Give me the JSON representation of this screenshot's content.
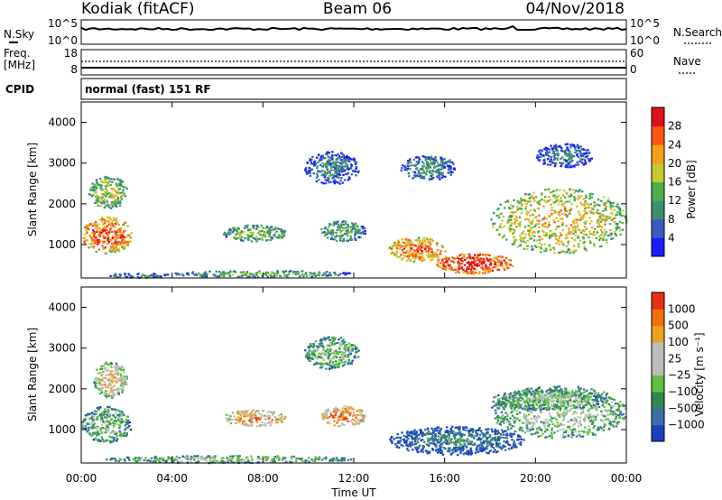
{
  "header": {
    "station": "Kodiak (fitACF)",
    "beam": "Beam 06",
    "date": "04/Nov/2018"
  },
  "sky_panel": {
    "left_label": "N.Sky",
    "left_top": "10^5",
    "left_bottom": "10^0",
    "right_top": "10^5",
    "right_bottom": "10^0",
    "right_label": "N.Search"
  },
  "freq_panel": {
    "label_line1": "Freq.",
    "label_line2": "[MHz]",
    "left_top": "18",
    "left_bottom": "8",
    "right_top": "60",
    "right_bottom": "0",
    "right_label": "Nave"
  },
  "cpid": {
    "label": "CPID",
    "value": "normal (fast) 151 RF"
  },
  "x_axis": {
    "title": "Time UT",
    "ticks": [
      "00:00",
      "04:00",
      "08:00",
      "12:00",
      "16:00",
      "20:00",
      "00:00"
    ]
  },
  "chart_data": [
    {
      "type": "heatmap",
      "title": "Power",
      "ylabel": "Slant Range [km]",
      "xlabel": "Time UT",
      "ylim": [
        180,
        4500
      ],
      "yticks": [
        1000,
        2000,
        3000,
        4000
      ],
      "colorbar": {
        "label": "Power [dB]",
        "ticks": [
          "4",
          "8",
          "12",
          "16",
          "20",
          "24",
          "28"
        ],
        "colors": [
          "#1a1aff",
          "#3a5ac0",
          "#3c8f6e",
          "#49b049",
          "#c9c92e",
          "#f2a019",
          "#ff5512",
          "#e0101a"
        ]
      },
      "blobs": [
        {
          "t": [
            0.0,
            2.2
          ],
          "r": [
            800,
            1700
          ],
          "level": 0.85
        },
        {
          "t": [
            0.3,
            2.0
          ],
          "r": [
            1900,
            2700
          ],
          "level": 0.55
        },
        {
          "t": [
            1.0,
            4.0
          ],
          "r": [
            200,
            320
          ],
          "level": 0.35
        },
        {
          "t": [
            4.0,
            12.0
          ],
          "r": [
            220,
            380
          ],
          "level": 0.45
        },
        {
          "t": [
            6.2,
            9.0
          ],
          "r": [
            1100,
            1500
          ],
          "level": 0.5
        },
        {
          "t": [
            9.8,
            12.2
          ],
          "r": [
            2500,
            3300
          ],
          "level": 0.3
        },
        {
          "t": [
            10.5,
            12.5
          ],
          "r": [
            1100,
            1600
          ],
          "level": 0.45
        },
        {
          "t": [
            14.0,
            16.5
          ],
          "r": [
            2600,
            3200
          ],
          "level": 0.35
        },
        {
          "t": [
            13.5,
            16.0
          ],
          "r": [
            600,
            1200
          ],
          "level": 0.8
        },
        {
          "t": [
            15.5,
            19.0
          ],
          "r": [
            300,
            800
          ],
          "level": 0.95
        },
        {
          "t": [
            18.0,
            24.0
          ],
          "r": [
            800,
            2400
          ],
          "level": 0.65
        },
        {
          "t": [
            20.0,
            22.5
          ],
          "r": [
            2900,
            3500
          ],
          "level": 0.3
        }
      ]
    },
    {
      "type": "heatmap",
      "title": "Velocity",
      "ylabel": "Slant Range [km]",
      "xlabel": "Time UT",
      "ylim": [
        180,
        4500
      ],
      "yticks": [
        1000,
        2000,
        3000,
        4000
      ],
      "colorbar": {
        "label": "Velocity [m s⁻¹]",
        "ticks": [
          "1000",
          "500",
          "100",
          "25",
          "−25",
          "−100",
          "−500",
          "−1000"
        ],
        "colors": [
          "#1c3fbf",
          "#3a6fb0",
          "#2e8a50",
          "#5ec23c",
          "#bdbdbd",
          "#bdbdbd",
          "#f0a020",
          "#f07010",
          "#e83012"
        ]
      },
      "blobs": [
        {
          "t": [
            0.0,
            2.2
          ],
          "r": [
            700,
            1600
          ],
          "level": 0.45
        },
        {
          "t": [
            0.5,
            2.0
          ],
          "r": [
            1800,
            2700
          ],
          "level": 0.65
        },
        {
          "t": [
            1.0,
            12.0
          ],
          "r": [
            200,
            380
          ],
          "level": 0.45
        },
        {
          "t": [
            6.2,
            9.0
          ],
          "r": [
            1100,
            1500
          ],
          "level": 0.75
        },
        {
          "t": [
            9.8,
            12.2
          ],
          "r": [
            2500,
            3300
          ],
          "level": 0.45
        },
        {
          "t": [
            10.5,
            12.5
          ],
          "r": [
            1100,
            1600
          ],
          "level": 0.8
        },
        {
          "t": [
            13.5,
            19.5
          ],
          "r": [
            400,
            1100
          ],
          "level": 0.25
        },
        {
          "t": [
            18.0,
            24.0
          ],
          "r": [
            800,
            2100
          ],
          "level": 0.5
        },
        {
          "t": [
            18.0,
            23.0
          ],
          "r": [
            1500,
            2000
          ],
          "level": 0.45
        }
      ]
    }
  ]
}
